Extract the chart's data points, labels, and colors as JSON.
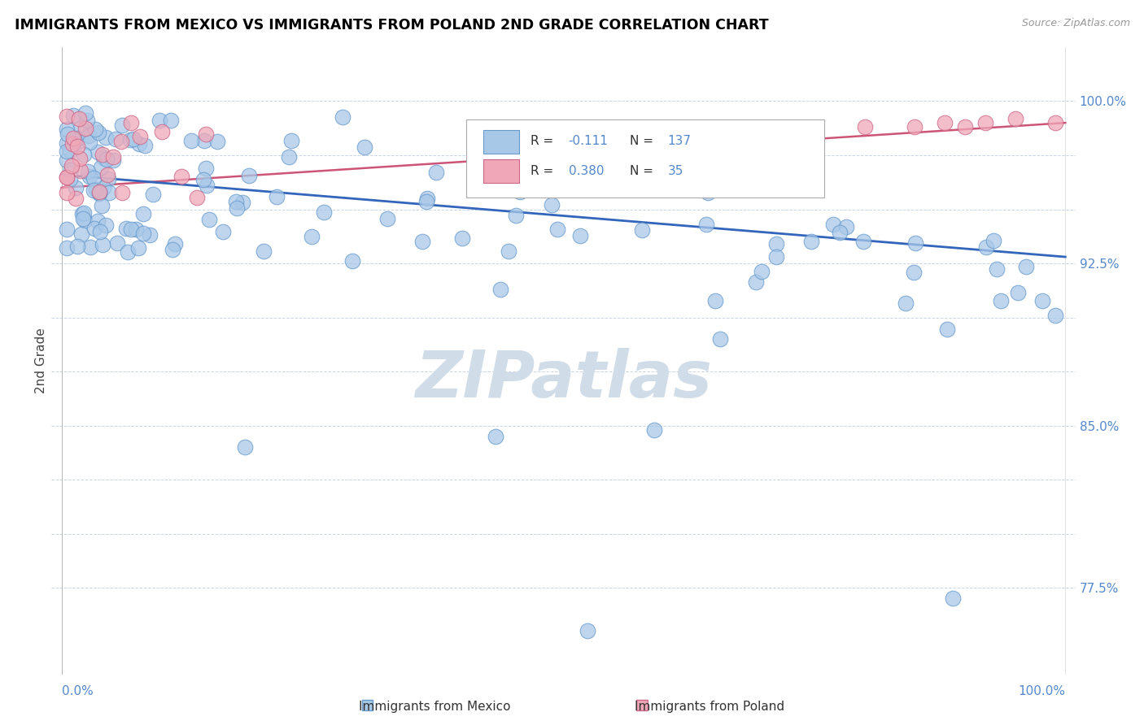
{
  "title": "IMMIGRANTS FROM MEXICO VS IMMIGRANTS FROM POLAND 2ND GRADE CORRELATION CHART",
  "source": "Source: ZipAtlas.com",
  "ylabel": "2nd Grade",
  "yticks": [
    0.775,
    0.8,
    0.825,
    0.85,
    0.875,
    0.9,
    0.925,
    0.95,
    0.975,
    1.0
  ],
  "ytick_labels_right": [
    "77.5%",
    "",
    "",
    "85.0%",
    "",
    "",
    "92.5%",
    "",
    "",
    "100.0%"
  ],
  "ymin": 0.735,
  "ymax": 1.025,
  "xmin": -0.01,
  "xmax": 1.01,
  "mexico_color": "#a8c8e8",
  "mexico_edge": "#6699cc",
  "poland_color": "#f0a8b8",
  "poland_edge": "#cc6688",
  "mexico_line_color": "#3366bb",
  "poland_line_color": "#cc5577",
  "axis_color": "#5588cc",
  "grid_color": "#bbccdd",
  "r_mexico": -0.111,
  "n_mexico": 137,
  "r_poland": 0.38,
  "n_poland": 35,
  "watermark_color": "#d0dde8",
  "mexico_line_y0": 0.966,
  "mexico_line_y1": 0.928,
  "poland_line_y0": 0.96,
  "poland_line_y1": 0.99
}
